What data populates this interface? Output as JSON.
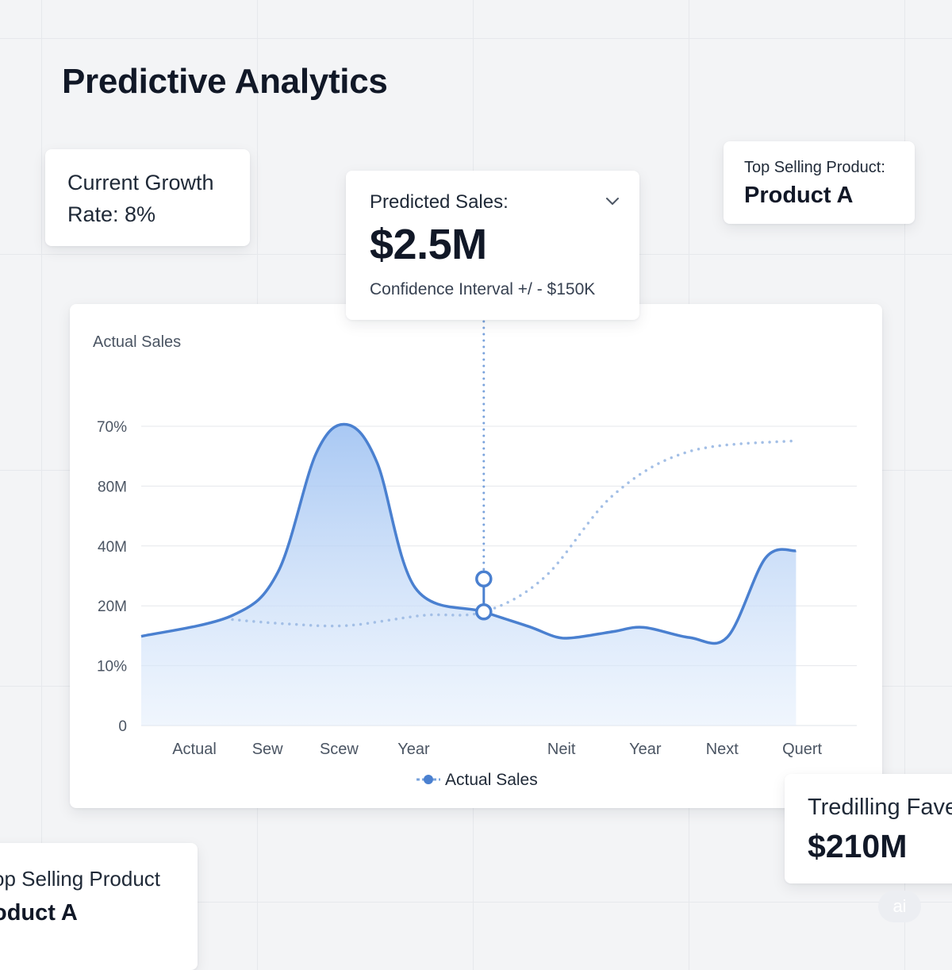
{
  "page": {
    "title": "Predictive Analytics"
  },
  "cards": {
    "growth": {
      "text": "Current Growth Rate: 8%"
    },
    "top_selling_1": {
      "label": "Top Selling Product:",
      "value": "Product A"
    },
    "predicted": {
      "label": "Predicted Sales:",
      "value": "$2.5M",
      "sub": "Confidence Interval +/ - $150K",
      "expand_icon": "chevron-down-icon"
    },
    "trending": {
      "label": "Tredilling Fave",
      "value": "$210M"
    },
    "top_selling_2": {
      "label": "op Selling Product",
      "value": "oduct A"
    }
  },
  "badge": {
    "text": "ai"
  },
  "colors": {
    "series": "#4a80d0",
    "fill": "#a9c8f4",
    "forecast": "#a3bfe6",
    "grid": "#e5e7eb"
  },
  "chart_data": {
    "type": "area",
    "title": "Actual Sales",
    "y_ticks": [
      "0",
      "10%",
      "20M",
      "40M",
      "80M",
      "70%"
    ],
    "x_ticks": [
      "Actual",
      "Sew",
      "Scew",
      "Year",
      "Neit",
      "Year",
      "Next",
      "Quert"
    ],
    "y_scale": "categorical ticks; values in gridline steps 0–5",
    "series": [
      {
        "name": "Actual Sales",
        "style": "solid-area",
        "points": [
          [
            0,
            1.49
          ],
          [
            0.5,
            1.84
          ],
          [
            1.1,
            2.57
          ],
          [
            1.6,
            4.55
          ],
          [
            2.0,
            5.03
          ],
          [
            2.4,
            4.39
          ],
          [
            2.9,
            2.3
          ],
          [
            3.8,
            1.9
          ],
          [
            4.4,
            1.65
          ],
          [
            4.75,
            1.48
          ],
          [
            5.0,
            1.47
          ],
          [
            5.5,
            1.57
          ],
          [
            5.9,
            1.64
          ],
          [
            6.5,
            1.47
          ],
          [
            7.0,
            1.48
          ],
          [
            7.5,
            2.8
          ],
          [
            7.9,
            2.92
          ]
        ]
      },
      {
        "name": "",
        "style": "dotted-forecast",
        "points": [
          [
            0.5,
            1.77
          ],
          [
            1.2,
            1.7
          ],
          [
            2.0,
            1.67
          ],
          [
            3.0,
            1.84
          ],
          [
            3.8,
            1.9
          ],
          [
            4.6,
            2.48
          ],
          [
            5.5,
            3.85
          ],
          [
            6.5,
            4.58
          ],
          [
            7.9,
            4.76
          ]
        ]
      }
    ],
    "highlight": {
      "x": 3.8,
      "actual": 1.9,
      "predicted": 2.45
    },
    "legend": {
      "position": "bottom-center",
      "entries": [
        "Actual Sales"
      ]
    },
    "grid": true
  }
}
